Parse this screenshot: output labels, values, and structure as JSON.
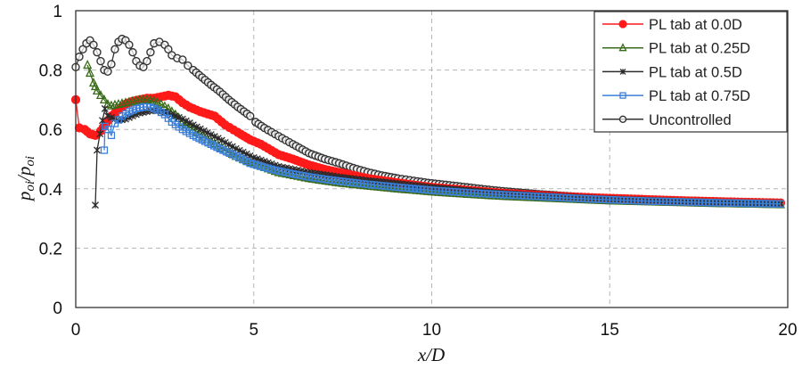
{
  "chart_data": {
    "type": "line",
    "title": "",
    "xlabel": "x/D",
    "ylabel": "p_oi/p_oi",
    "ylabel_display": {
      "base1": "p",
      "sub1": "oi",
      "base2": "p",
      "sub2": "oi"
    },
    "xlim": [
      0,
      20
    ],
    "ylim": [
      0,
      1
    ],
    "xticks": [
      0,
      5,
      10,
      15,
      20
    ],
    "xtick_labels": [
      "0",
      "5",
      "10",
      "15",
      "20"
    ],
    "yticks": [
      0,
      0.2,
      0.4,
      0.6,
      0.8,
      1
    ],
    "ytick_labels": [
      "0",
      "0.2",
      "0.4",
      "0.6",
      "0.8",
      "1"
    ],
    "grid": true,
    "legend_position": "upper right",
    "series": [
      {
        "name": "PL tab at 0.0D",
        "color": "#ff1a1a",
        "marker": "circle-filled",
        "x": [
          0,
          0.1,
          0.25,
          0.4,
          0.55,
          0.7,
          0.85,
          1.0,
          1.2,
          1.4,
          1.6,
          1.8,
          2.0,
          2.2,
          2.4,
          2.6,
          2.8,
          3.0,
          3.2,
          3.5,
          3.9,
          4.2,
          4.55,
          4.9,
          5.2,
          5.7,
          6.1,
          6.55,
          7.0,
          7.4,
          8.2,
          9.05,
          10,
          11,
          12,
          13,
          14,
          15,
          16,
          17,
          18,
          19,
          19.8
        ],
        "y": [
          0.7,
          0.605,
          0.6,
          0.585,
          0.58,
          0.595,
          0.62,
          0.645,
          0.665,
          0.685,
          0.695,
          0.7,
          0.705,
          0.705,
          0.71,
          0.715,
          0.71,
          0.69,
          0.675,
          0.66,
          0.645,
          0.615,
          0.59,
          0.565,
          0.55,
          0.515,
          0.5,
          0.48,
          0.465,
          0.455,
          0.435,
          0.42,
          0.405,
          0.395,
          0.385,
          0.378,
          0.372,
          0.368,
          0.364,
          0.36,
          0.357,
          0.354,
          0.352
        ]
      },
      {
        "name": "PL tab at 0.25D",
        "color": "#3a6b1a",
        "marker": "triangle-open",
        "x": [
          0.33,
          0.4,
          0.5,
          0.55,
          0.6,
          0.7,
          0.8,
          0.9,
          1.0,
          1.2,
          1.4,
          1.6,
          1.8,
          2.0,
          2.2,
          2.4,
          2.6,
          2.8,
          3.0,
          3.3,
          3.6,
          4.0,
          4.5,
          5.0,
          5.7,
          6.55,
          7.4,
          8.2,
          9.05,
          10,
          11,
          12,
          13,
          14,
          15,
          16,
          17,
          18,
          19,
          19.8
        ],
        "y": [
          0.817,
          0.79,
          0.757,
          0.745,
          0.73,
          0.715,
          0.7,
          0.685,
          0.68,
          0.685,
          0.69,
          0.695,
          0.7,
          0.7,
          0.695,
          0.685,
          0.67,
          0.65,
          0.625,
          0.6,
          0.575,
          0.545,
          0.51,
          0.485,
          0.455,
          0.435,
          0.42,
          0.41,
          0.4,
          0.39,
          0.382,
          0.375,
          0.37,
          0.365,
          0.36,
          0.357,
          0.354,
          0.351,
          0.349,
          0.347
        ]
      },
      {
        "name": "PL tab at 0.5D",
        "color": "#2b2b2b",
        "marker": "asterisk",
        "x": [
          0.55,
          0.6,
          0.68,
          0.75,
          0.82,
          0.9,
          1.0,
          1.2,
          1.4,
          1.6,
          1.8,
          2.0,
          2.2,
          2.4,
          2.6,
          2.8,
          3.0,
          3.3,
          3.6,
          4.0,
          4.5,
          5.0,
          5.7,
          6.55,
          7.4,
          8.2,
          9.05,
          10,
          11,
          12,
          13,
          14,
          15,
          16,
          17,
          18,
          19,
          19.8
        ],
        "y": [
          0.345,
          0.53,
          0.585,
          0.63,
          0.67,
          0.645,
          0.64,
          0.63,
          0.635,
          0.645,
          0.655,
          0.66,
          0.665,
          0.66,
          0.655,
          0.645,
          0.635,
          0.615,
          0.595,
          0.57,
          0.535,
          0.505,
          0.475,
          0.455,
          0.44,
          0.428,
          0.418,
          0.405,
          0.395,
          0.385,
          0.378,
          0.372,
          0.366,
          0.362,
          0.358,
          0.355,
          0.352,
          0.35
        ]
      },
      {
        "name": "PL tab at 0.75D",
        "color": "#3a7fd9",
        "marker": "square-open",
        "x": [
          0.8,
          0.82,
          0.9,
          1.0,
          1.1,
          1.3,
          1.5,
          1.7,
          1.9,
          2.1,
          2.3,
          2.5,
          2.7,
          3.0,
          3.3,
          3.55,
          3.8,
          4.05,
          4.5,
          4.9,
          5.3,
          5.7,
          6.1,
          6.55,
          7.0,
          7.4,
          8.2,
          9.05,
          10,
          11,
          12,
          13,
          14,
          15,
          16,
          17,
          18,
          19,
          19.8
        ],
        "y": [
          0.53,
          0.61,
          0.6,
          0.58,
          0.62,
          0.645,
          0.66,
          0.67,
          0.676,
          0.675,
          0.665,
          0.65,
          0.625,
          0.6,
          0.58,
          0.565,
          0.55,
          0.535,
          0.51,
          0.486,
          0.472,
          0.46,
          0.45,
          0.44,
          0.432,
          0.426,
          0.415,
          0.405,
          0.395,
          0.387,
          0.38,
          0.374,
          0.368,
          0.363,
          0.359,
          0.356,
          0.353,
          0.351,
          0.349
        ]
      },
      {
        "name": "Uncontrolled",
        "color": "#333333",
        "marker": "circle-open",
        "x": [
          0,
          0.1,
          0.2,
          0.3,
          0.4,
          0.5,
          0.6,
          0.7,
          0.8,
          0.9,
          1.0,
          1.1,
          1.2,
          1.3,
          1.4,
          1.5,
          1.6,
          1.7,
          1.8,
          1.9,
          2.0,
          2.1,
          2.2,
          2.35,
          2.5,
          2.6,
          2.7,
          2.85,
          3.0,
          3.15,
          3.3,
          3.55,
          3.8,
          4.05,
          4.3,
          4.55,
          4.9,
          5.05,
          5.3,
          5.7,
          6.1,
          6.55,
          7.0,
          7.4,
          7.8,
          8.2,
          8.6,
          9.05,
          9.5,
          9.9,
          10.5,
          11,
          11.5,
          12,
          12.5,
          13,
          13.5,
          14,
          14.5,
          15,
          15.5,
          16,
          16.5,
          17,
          17.5,
          18,
          18.5,
          19,
          19.5,
          19.8
        ],
        "y": [
          0.81,
          0.845,
          0.87,
          0.89,
          0.9,
          0.885,
          0.86,
          0.83,
          0.8,
          0.795,
          0.82,
          0.87,
          0.895,
          0.905,
          0.9,
          0.885,
          0.86,
          0.83,
          0.815,
          0.81,
          0.83,
          0.86,
          0.89,
          0.895,
          0.885,
          0.87,
          0.85,
          0.84,
          0.835,
          0.815,
          0.8,
          0.775,
          0.75,
          0.727,
          0.7,
          0.676,
          0.645,
          0.625,
          0.605,
          0.577,
          0.55,
          0.52,
          0.5,
          0.486,
          0.47,
          0.456,
          0.445,
          0.435,
          0.427,
          0.42,
          0.412,
          0.405,
          0.398,
          0.392,
          0.387,
          0.382,
          0.378,
          0.374,
          0.371,
          0.368,
          0.366,
          0.364,
          0.362,
          0.36,
          0.358,
          0.357,
          0.356,
          0.355,
          0.354,
          0.353
        ]
      }
    ]
  }
}
